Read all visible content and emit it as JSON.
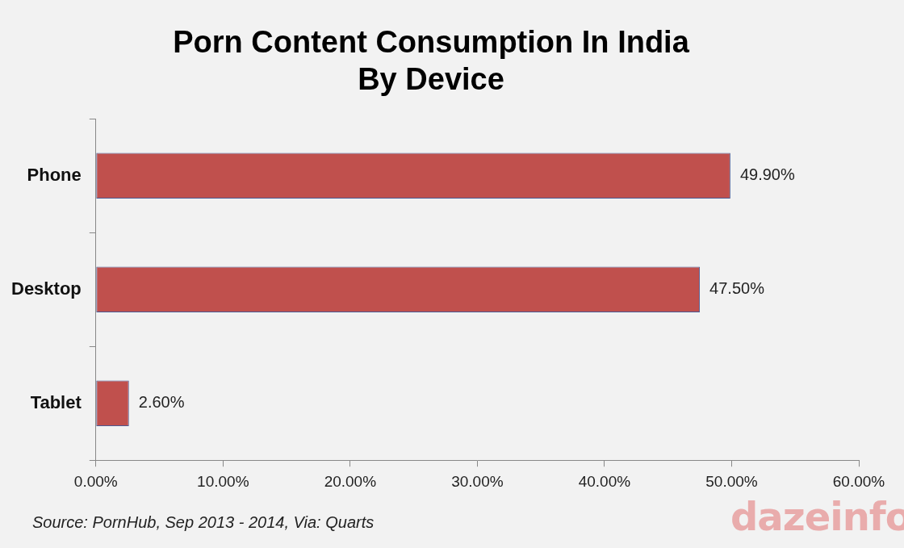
{
  "chart_data": {
    "type": "bar",
    "orientation": "horizontal",
    "title": [
      "Porn Content Consumption In India",
      "By Device"
    ],
    "categories": [
      "Phone",
      "Desktop",
      "Tablet"
    ],
    "values": [
      49.9,
      47.5,
      2.6
    ],
    "value_labels": [
      "49.90%",
      "47.50%",
      "2.60%"
    ],
    "data_labels": true,
    "color": "#c0504d",
    "xlim": [
      0,
      60
    ],
    "xticks": [
      {
        "value": 0,
        "label": "0.00%"
      },
      {
        "value": 10,
        "label": "10.00%"
      },
      {
        "value": 20,
        "label": "20.00%"
      },
      {
        "value": 30,
        "label": "30.00%"
      },
      {
        "value": 40,
        "label": "40.00%"
      },
      {
        "value": 50,
        "label": "50.00%"
      },
      {
        "value": 60,
        "label": "60.00%"
      }
    ],
    "grid": false,
    "source": "Source: PornHub, Sep 2013 - 2014, Via: Quarts",
    "watermark": "dazeinfo"
  }
}
